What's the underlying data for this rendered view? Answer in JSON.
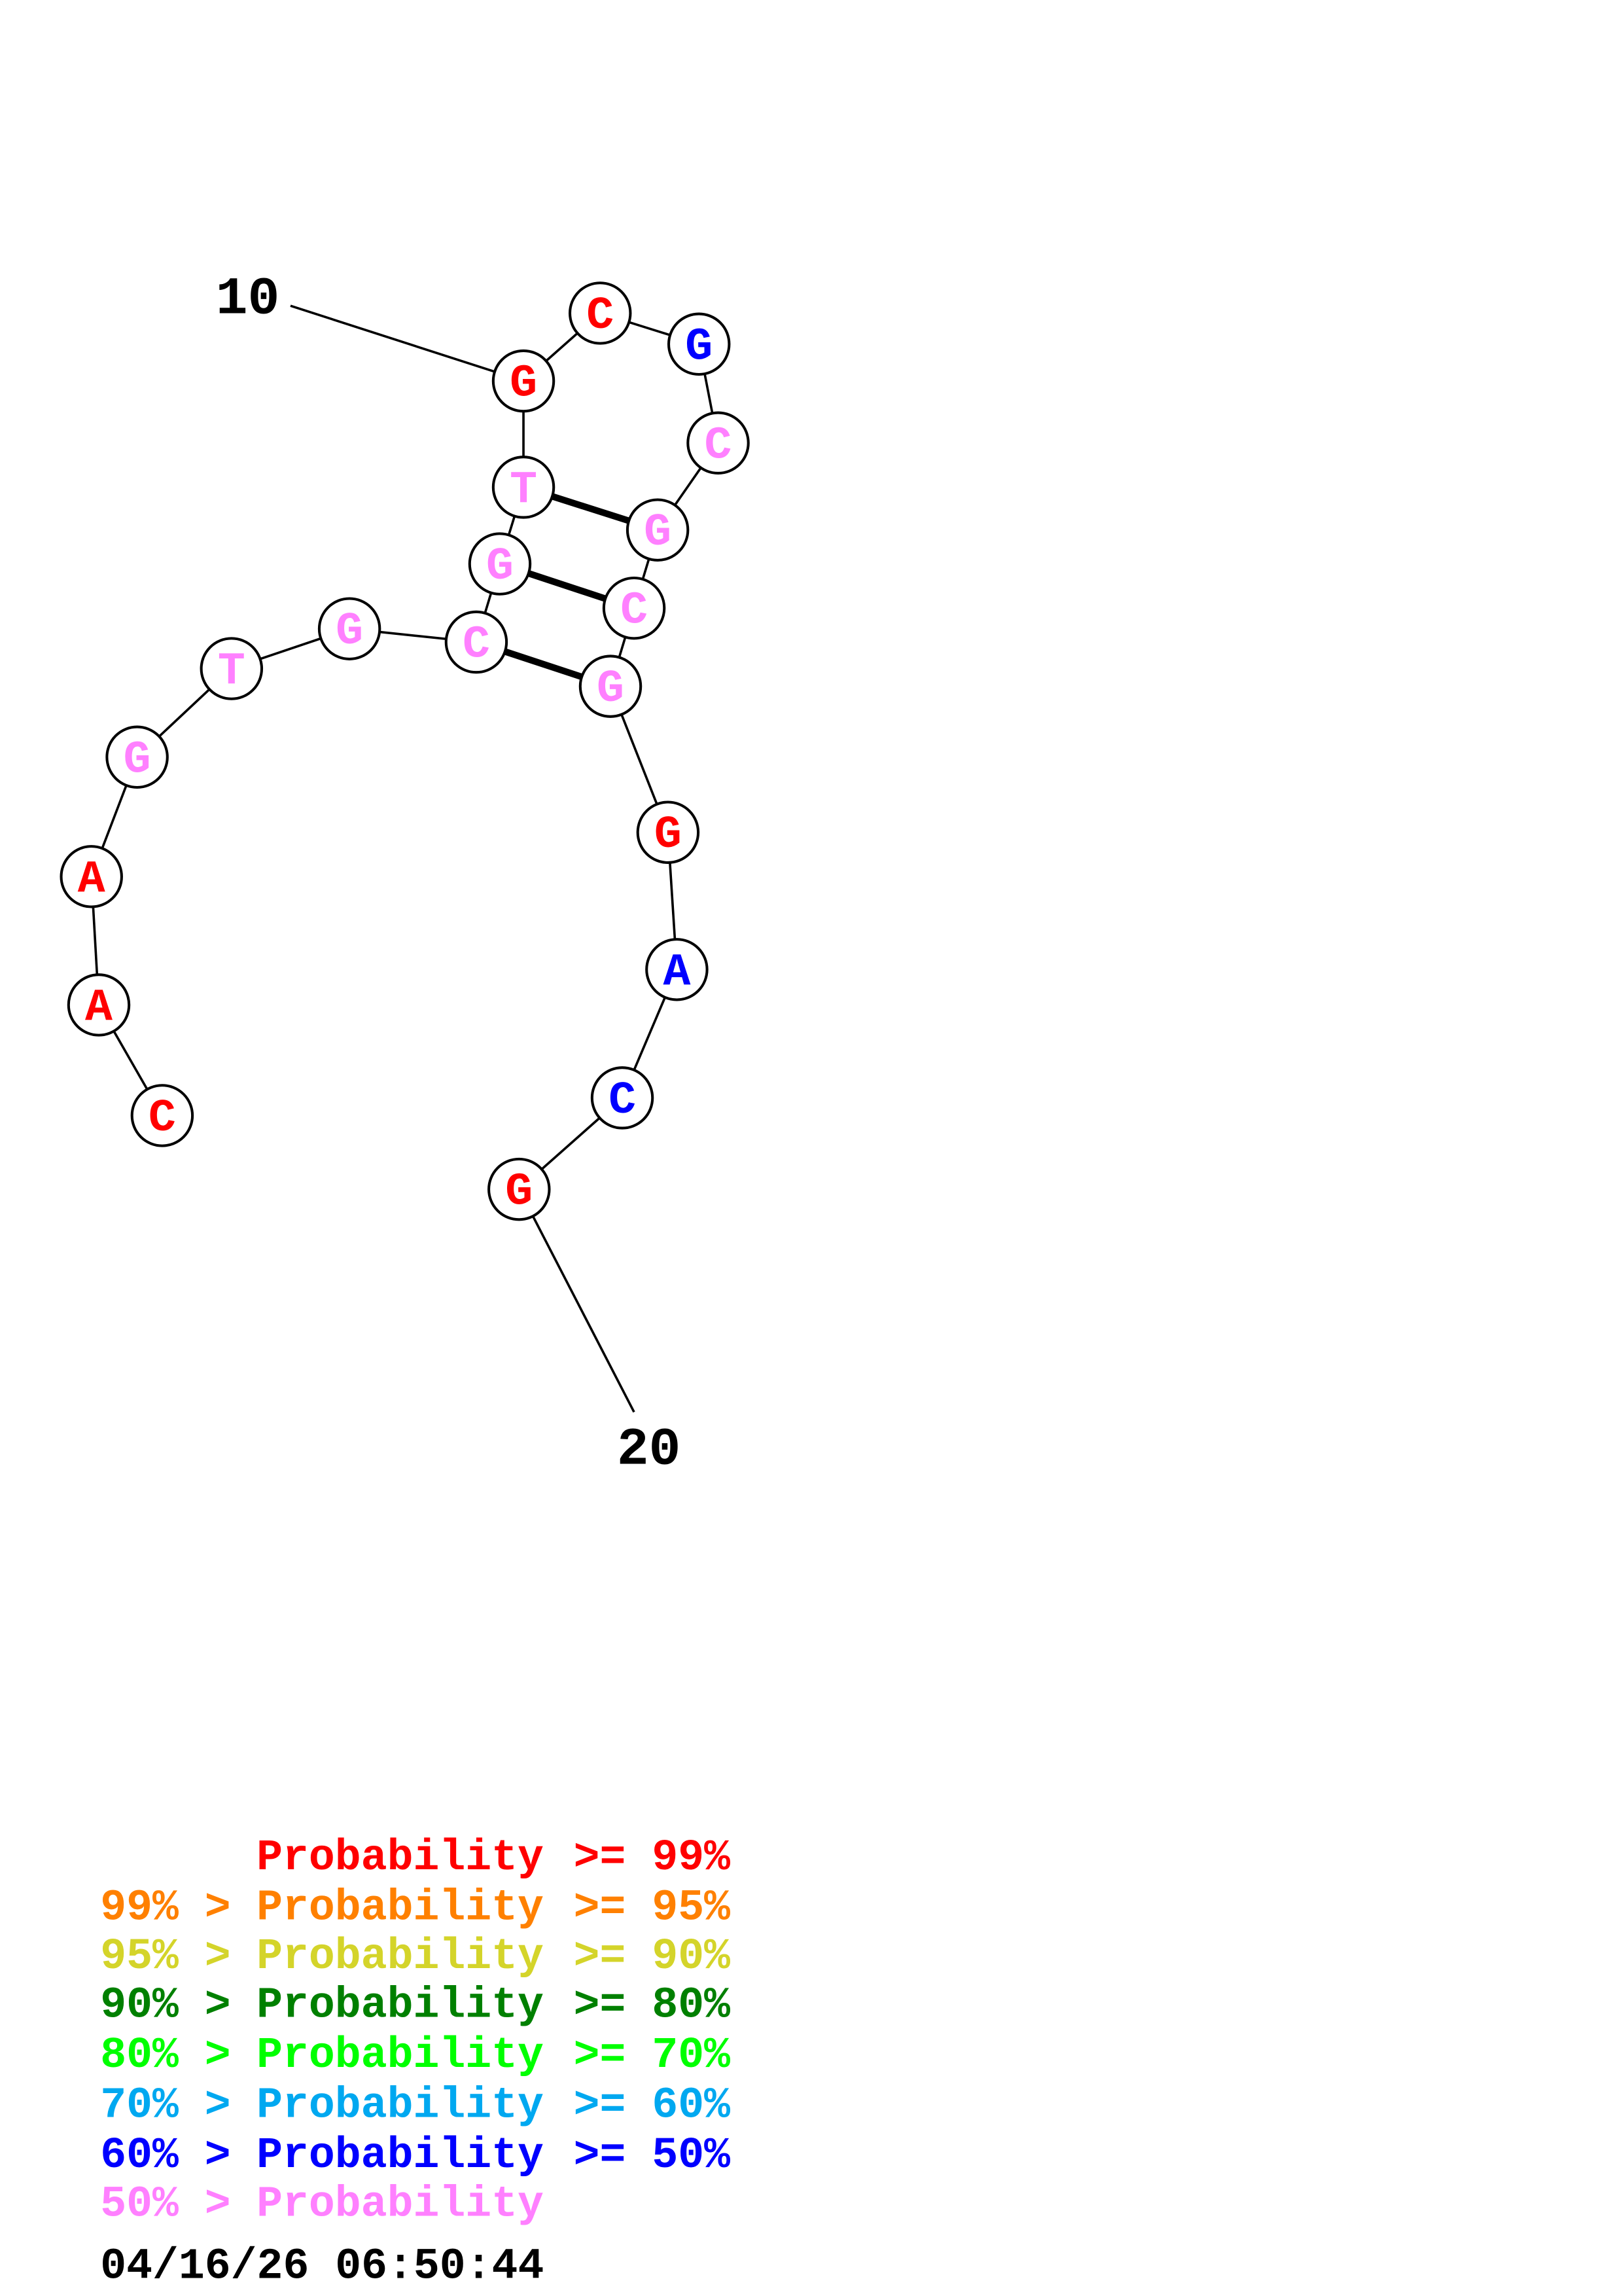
{
  "structure": {
    "nucleotides": [
      {
        "base": "C",
        "color": "#ff0000"
      },
      {
        "base": "A",
        "color": "#ff0000"
      },
      {
        "base": "A",
        "color": "#ff0000"
      },
      {
        "base": "G",
        "color": "#ff80ff"
      },
      {
        "base": "T",
        "color": "#ff80ff"
      },
      {
        "base": "G",
        "color": "#ff80ff"
      },
      {
        "base": "C",
        "color": "#ff80ff"
      },
      {
        "base": "G",
        "color": "#ff80ff"
      },
      {
        "base": "T",
        "color": "#ff80ff"
      },
      {
        "base": "G",
        "color": "#ff0000"
      },
      {
        "base": "C",
        "color": "#ff0000"
      },
      {
        "base": "G",
        "color": "#0000ff"
      },
      {
        "base": "C",
        "color": "#ff80ff"
      },
      {
        "base": "G",
        "color": "#ff80ff"
      },
      {
        "base": "C",
        "color": "#ff80ff"
      },
      {
        "base": "G",
        "color": "#ff80ff"
      },
      {
        "base": "G",
        "color": "#ff0000"
      },
      {
        "base": "A",
        "color": "#0000ff"
      },
      {
        "base": "C",
        "color": "#0000ff"
      },
      {
        "base": "G",
        "color": "#ff0000"
      }
    ],
    "base_pairs": [
      [
        9,
        14
      ],
      [
        8,
        15
      ],
      [
        7,
        16
      ]
    ],
    "position_labels": [
      {
        "index": 10,
        "text": "10"
      },
      {
        "index": 20,
        "text": "20"
      }
    ]
  },
  "legend": {
    "rows": [
      {
        "prefix": "",
        "label": "Probability",
        "suffix": ">= 99%",
        "color": "#ff0000"
      },
      {
        "prefix": "99% >",
        "label": "Probability",
        "suffix": ">= 95%",
        "color": "#ff8000"
      },
      {
        "prefix": "95% >",
        "label": "Probability",
        "suffix": ">= 90%",
        "color": "#d4d42a"
      },
      {
        "prefix": "90% >",
        "label": "Probability",
        "suffix": ">= 80%",
        "color": "#008000"
      },
      {
        "prefix": "80% >",
        "label": "Probability",
        "suffix": ">= 70%",
        "color": "#00ff00"
      },
      {
        "prefix": "70% >",
        "label": "Probability",
        "suffix": ">= 60%",
        "color": "#00a8f0"
      },
      {
        "prefix": "60% >",
        "label": "Probability",
        "suffix": ">= 50%",
        "color": "#0000ff"
      },
      {
        "prefix": "50% >",
        "label": "Probability",
        "suffix": "",
        "color": "#ff80ff"
      }
    ],
    "timestamp": "04/16/26 06:50:44"
  }
}
